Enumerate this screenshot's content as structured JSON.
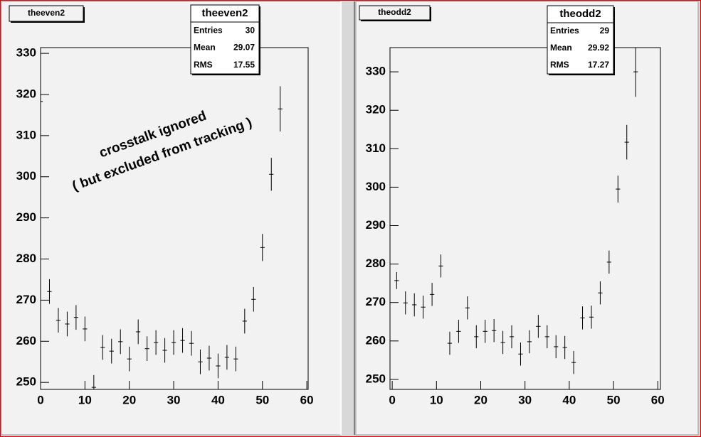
{
  "chart_data": [
    {
      "type": "errorbar",
      "title": "theeven2",
      "stats": {
        "title": "theeven2",
        "labels": [
          "Entries",
          "Mean",
          "RMS"
        ],
        "values": [
          30,
          29.07,
          17.55
        ]
      },
      "annotation": [
        "crosstalk ignored",
        "( but excluded from tracking )"
      ],
      "x": [
        0,
        2,
        4,
        6,
        8,
        10,
        12,
        14,
        16,
        18,
        20,
        22,
        24,
        26,
        28,
        30,
        32,
        34,
        36,
        38,
        40,
        42,
        44,
        46,
        48,
        50,
        52,
        54
      ],
      "values": [
        318.3,
        272.1,
        265.1,
        264.2,
        265.8,
        263.0,
        248.8,
        258.5,
        257.6,
        259.9,
        255.7,
        262.3,
        258.2,
        259.7,
        257.8,
        259.7,
        260.2,
        259.5,
        255.0,
        255.9,
        254.0,
        256.1,
        255.7,
        264.9,
        270.2,
        282.8,
        300.6,
        316.5
      ],
      "errors": [
        3.5,
        3,
        3,
        3,
        3,
        3,
        3,
        3,
        3,
        3,
        3,
        3,
        3,
        3,
        3,
        3,
        3,
        3,
        3,
        3,
        3,
        3,
        3,
        3,
        3,
        3.3,
        4,
        5.5
      ],
      "x_error": 0.5,
      "color": "#000000",
      "xlim": [
        0,
        60.3
      ],
      "ylim": [
        248.3,
        331.4
      ],
      "xticks": [
        0,
        10,
        20,
        30,
        40,
        50,
        60
      ],
      "yticks": [
        250,
        260,
        270,
        280,
        290,
        300,
        310,
        320,
        330
      ]
    },
    {
      "type": "errorbar",
      "title": "theodd2",
      "stats": {
        "title": "theodd2",
        "labels": [
          "Entries",
          "Mean",
          "RMS"
        ],
        "values": [
          29,
          29.92,
          17.27
        ]
      },
      "x": [
        1,
        3,
        5,
        7,
        9,
        11,
        13,
        15,
        17,
        19,
        21,
        23,
        25,
        27,
        29,
        31,
        33,
        35,
        37,
        39,
        41,
        43,
        45,
        47,
        49,
        51,
        53,
        55
      ],
      "values": [
        275.7,
        269.9,
        269.4,
        268.8,
        272.1,
        279.5,
        259.4,
        262.5,
        268.6,
        261.1,
        262.5,
        262.7,
        259.6,
        261.1,
        256.6,
        259.8,
        263.8,
        261.1,
        258.5,
        258.3,
        254.4,
        266.0,
        266.2,
        272.5,
        280.5,
        299.5,
        311.7,
        330.0
      ],
      "errors": [
        2.2,
        3,
        3,
        3,
        3,
        3,
        3,
        3,
        3,
        3,
        3,
        3,
        3,
        3,
        3,
        3,
        3,
        3,
        3,
        3,
        3,
        3,
        3,
        3,
        3,
        3.5,
        4.5,
        6.5
      ],
      "x_error": 0.5,
      "color": "#000000",
      "xlim": [
        -0.5,
        60.6
      ],
      "ylim": [
        247.4,
        336.3
      ],
      "xticks": [
        0,
        10,
        20,
        30,
        40,
        50,
        60
      ],
      "yticks": [
        250,
        260,
        270,
        280,
        290,
        300,
        310,
        320,
        330
      ]
    }
  ]
}
